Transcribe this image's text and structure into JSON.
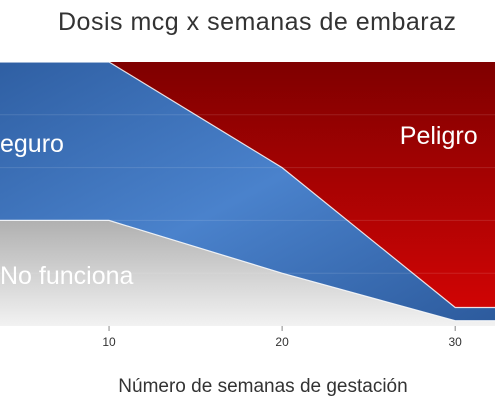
{
  "chart_data": {
    "type": "area",
    "title": "Dosis mcg x semanas de embaraz",
    "xlabel": "Número de semanas de gestación",
    "ylabel": "",
    "x_ticks": [
      10,
      20,
      30
    ],
    "xlim": [
      3.7,
      32.3
    ],
    "ylim": [
      0,
      100
    ],
    "grid": false,
    "legend": "none",
    "regions": [
      {
        "name": "No funciona",
        "color": "#d6d6d6",
        "points": [
          [
            3.7,
            40
          ],
          [
            10,
            40
          ],
          [
            20,
            20
          ],
          [
            30,
            2
          ],
          [
            32.3,
            2
          ]
        ]
      },
      {
        "name": "Seguro",
        "color": "#3a6fb9",
        "points": [
          [
            3.7,
            100
          ],
          [
            10,
            100
          ],
          [
            20,
            60
          ],
          [
            30,
            7
          ],
          [
            32.3,
            7
          ]
        ]
      },
      {
        "name": "Peligro",
        "color": "#b80000"
      }
    ],
    "region_labels": [
      {
        "text": "eguro",
        "x": 3.7,
        "y": 66
      },
      {
        "text": "Peligro",
        "x": 26.8,
        "y": 69
      },
      {
        "text": "No funciona",
        "x": 3.7,
        "y": 16
      }
    ]
  }
}
